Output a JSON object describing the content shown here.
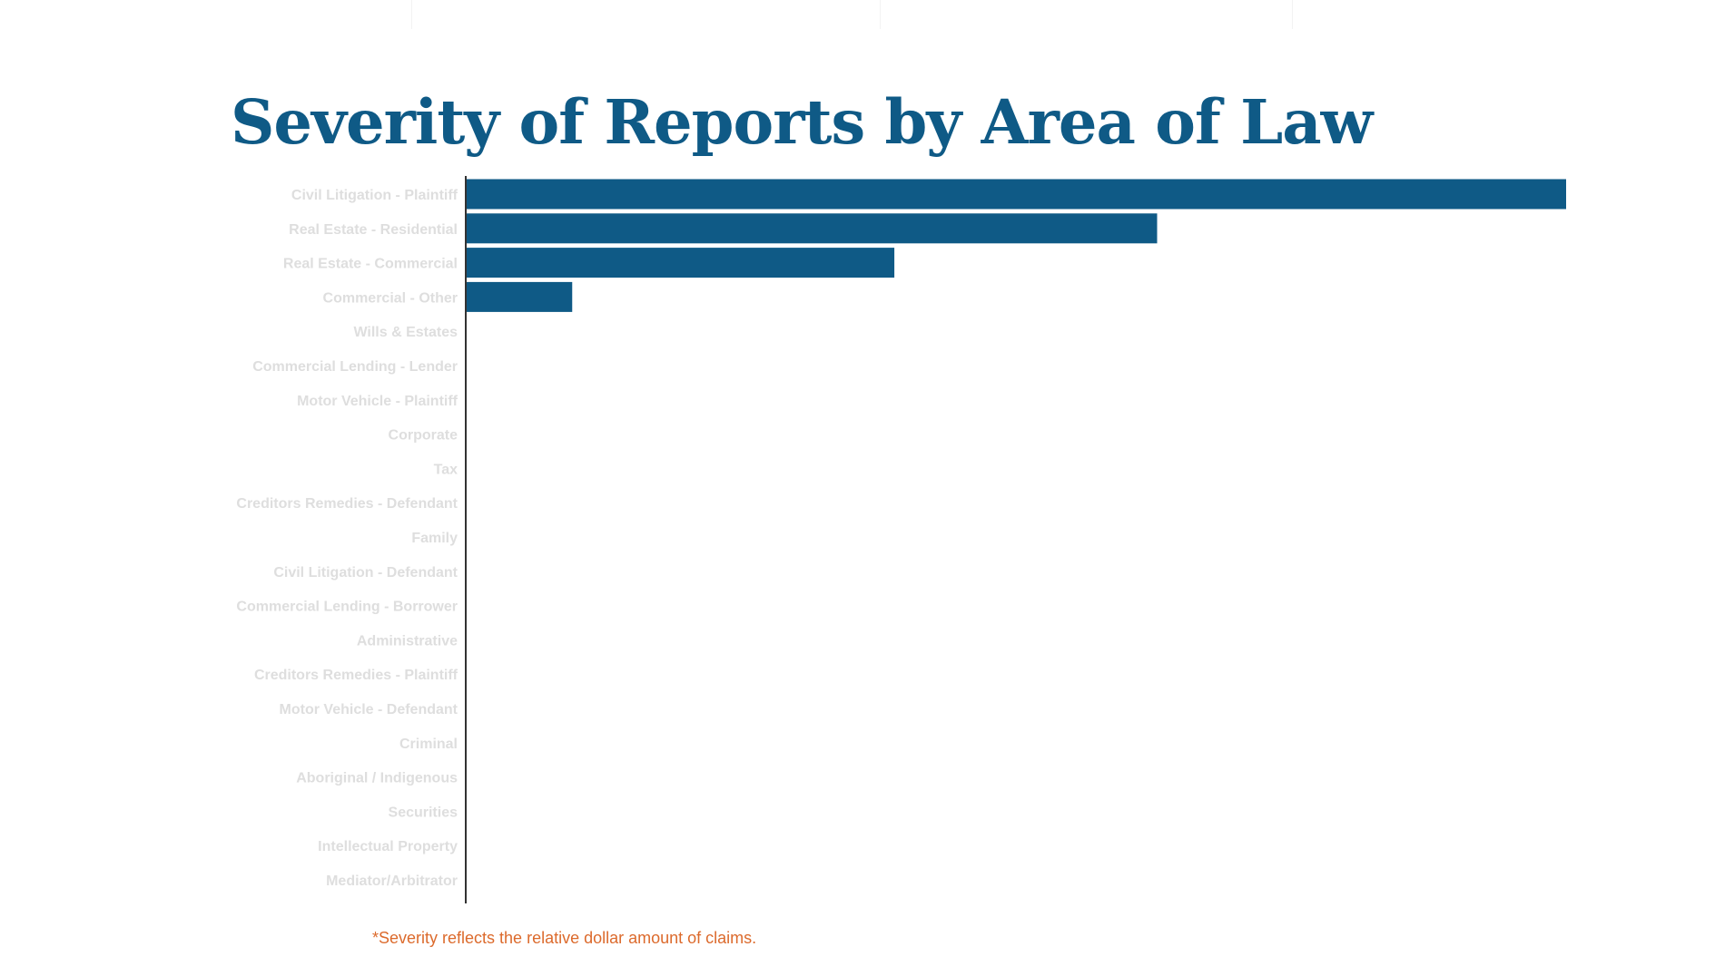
{
  "chart_data": {
    "type": "bar",
    "orientation": "horizontal",
    "title": "Severity of Reports by Area of Law",
    "categories": [
      "Civil Litigation - Plaintiff",
      "Real Estate - Residential",
      "Real Estate - Commercial",
      "Commercial - Other",
      "Wills & Estates",
      "Commercial Lending - Lender",
      "Motor Vehicle - Plaintiff",
      "Corporate",
      "Tax",
      "Creditors Remedies - Defendant",
      "Family",
      "Civil Litigation - Defendant",
      "Commercial Lending - Borrower",
      "Administrative",
      "Creditors Remedies - Plaintiff",
      "Motor Vehicle - Defendant",
      "Criminal",
      "Aboriginal / Indigenous",
      "Securities",
      "Intellectual Property",
      "Mediator/Arbitrator"
    ],
    "values": [
      100,
      62.8,
      38.9,
      9.6,
      0,
      0,
      0,
      0,
      0,
      0,
      0,
      0,
      0,
      0,
      0,
      0,
      0,
      0,
      0,
      0,
      0
    ],
    "xlim": [
      0,
      100
    ],
    "xlabel": "",
    "ylabel": "",
    "grid": false,
    "legend": "none",
    "bar_color": "#0f5a86",
    "label_color": "#dedede",
    "axis_color": "#333333",
    "footnote": "*Severity reflects the relative dollar amount of claims.",
    "footnote_color": "#dc6a2c"
  }
}
